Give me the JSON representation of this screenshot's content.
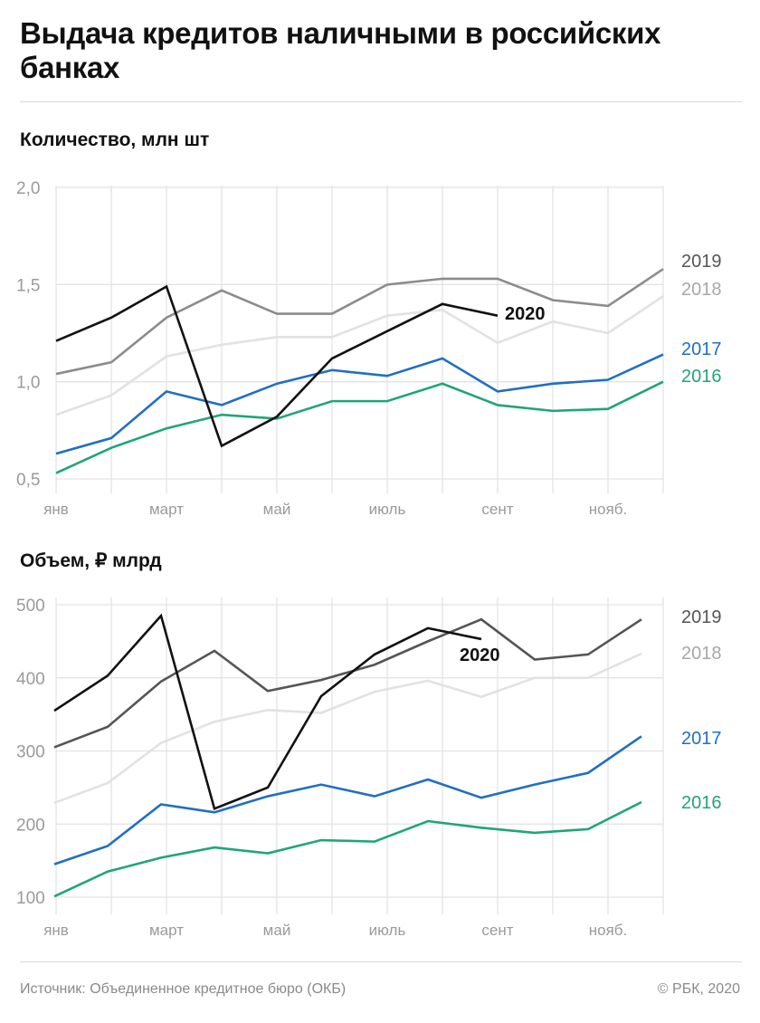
{
  "title": "Выдача кредитов наличными в российских банках",
  "footer": {
    "source": "Источник: Объединенное кредитное бюро (ОКБ)",
    "copyright": "© РБК, 2020"
  },
  "colors": {
    "2019": "#8c8c8c",
    "2019_dark": "#555555",
    "2018": "#e2e2e2",
    "2018_label": "#a8a8a8",
    "2017": "#1f6fc5",
    "2016": "#1fa57a",
    "2020": "#111111"
  },
  "chart_data": [
    {
      "type": "line",
      "title": "Количество, млн шт",
      "x_tick_labels": [
        "янв",
        "",
        "март",
        "",
        "май",
        "",
        "июль",
        "",
        "сент",
        "",
        "нояб.",
        ""
      ],
      "y_ticks": [
        "2,0",
        "1,5",
        "1,0",
        "0,5"
      ],
      "y_tick_values": [
        2.0,
        1.5,
        1.0,
        0.5
      ],
      "ylim": [
        0.5,
        2.0
      ],
      "grid": true,
      "series": [
        {
          "name": "2019",
          "values": [
            1.04,
            1.1,
            1.33,
            1.47,
            1.35,
            1.35,
            1.5,
            1.53,
            1.53,
            1.42,
            1.39,
            1.58
          ]
        },
        {
          "name": "2018",
          "values": [
            0.83,
            0.93,
            1.13,
            1.19,
            1.23,
            1.23,
            1.34,
            1.37,
            1.2,
            1.31,
            1.25,
            1.44
          ]
        },
        {
          "name": "2017",
          "values": [
            0.63,
            0.71,
            0.95,
            0.88,
            0.99,
            1.06,
            1.03,
            1.12,
            0.95,
            0.99,
            1.01,
            1.14
          ]
        },
        {
          "name": "2016",
          "values": [
            0.53,
            0.66,
            0.76,
            0.83,
            0.81,
            0.9,
            0.9,
            0.99,
            0.88,
            0.85,
            0.86,
            1.0
          ]
        },
        {
          "name": "2020",
          "values": [
            1.21,
            1.33,
            1.49,
            0.67,
            0.82,
            1.12,
            1.26,
            1.4,
            1.34
          ]
        }
      ]
    },
    {
      "type": "line",
      "title": "Объем, ₽ млрд",
      "x_tick_labels": [
        "янв",
        "",
        "март",
        "",
        "май",
        "",
        "июль",
        "",
        "сент",
        "",
        "нояб.",
        ""
      ],
      "y_ticks": [
        "500",
        "400",
        "300",
        "200",
        "100"
      ],
      "y_tick_values": [
        500,
        400,
        300,
        200,
        100
      ],
      "ylim": [
        100,
        500
      ],
      "grid": true,
      "series": [
        {
          "name": "2019",
          "values": [
            305,
            333,
            395,
            437,
            382,
            397,
            418,
            450,
            480,
            425,
            432,
            480
          ]
        },
        {
          "name": "2018",
          "values": [
            229,
            256,
            311,
            340,
            356,
            352,
            381,
            396,
            374,
            400,
            400,
            433
          ]
        },
        {
          "name": "2017",
          "values": [
            145,
            170,
            227,
            216,
            238,
            254,
            238,
            261,
            236,
            254,
            270,
            320
          ]
        },
        {
          "name": "2016",
          "values": [
            101,
            135,
            154,
            168,
            160,
            178,
            176,
            204,
            195,
            188,
            193,
            230
          ]
        },
        {
          "name": "2020",
          "values": [
            355,
            403,
            485,
            221,
            250,
            375,
            432,
            468,
            453
          ]
        }
      ]
    }
  ]
}
